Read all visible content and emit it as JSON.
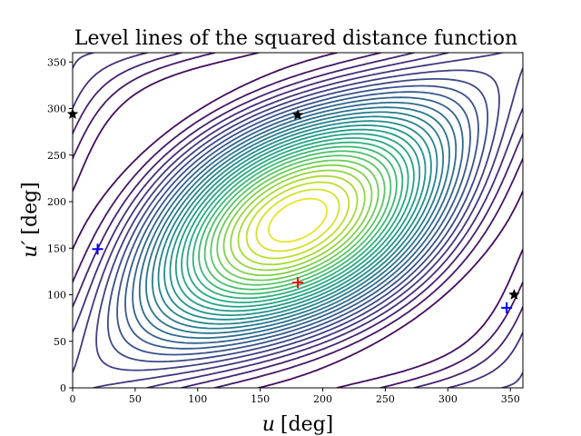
{
  "chart_data": {
    "type": "contour",
    "title": "Level lines of the squared distance function",
    "xlabel": "u [deg]",
    "ylabel": "u′ [deg]",
    "xlabel_parts": {
      "var": "u",
      "unit": "[deg]"
    },
    "ylabel_parts": {
      "var": "u′",
      "unit": "[deg]"
    },
    "xlim": [
      0,
      360
    ],
    "ylim": [
      0,
      360
    ],
    "xticks": [
      0,
      50,
      100,
      150,
      200,
      250,
      300,
      350
    ],
    "yticks": [
      0,
      50,
      100,
      150,
      200,
      250,
      300,
      350
    ],
    "colormap": "viridis",
    "grid": false,
    "level_count": 30,
    "markers": [
      {
        "role": "maximum",
        "symbol": "plus",
        "color": "#ff0000",
        "x": 180,
        "y": 113
      },
      {
        "role": "minimum",
        "symbol": "plus",
        "color": "#0000ff",
        "x": 20,
        "y": 149
      },
      {
        "role": "minimum",
        "symbol": "plus",
        "color": "#0000ff",
        "x": 347,
        "y": 86
      },
      {
        "role": "saddle",
        "symbol": "star",
        "color": "#000000",
        "x": 180,
        "y": 293
      },
      {
        "role": "saddle",
        "symbol": "star",
        "color": "#000000",
        "x": 0,
        "y": 294
      },
      {
        "role": "saddle",
        "symbol": "star",
        "color": "#000000",
        "x": 353,
        "y": 100
      }
    ]
  }
}
